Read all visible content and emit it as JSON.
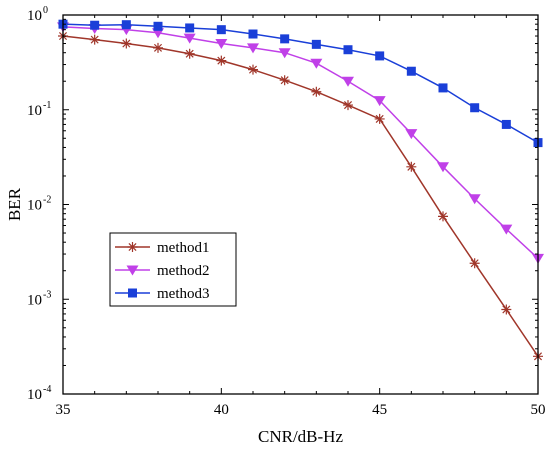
{
  "chart_data": {
    "type": "line",
    "xlabel": "CNR/dB-Hz",
    "ylabel": "BER",
    "xlim": [
      35,
      50
    ],
    "ylim": [
      0.0001,
      1
    ],
    "yscale": "log",
    "grid": false,
    "legend_position": "middle-left",
    "x_ticks": [
      {
        "value": 35,
        "label": "35"
      },
      {
        "value": 40,
        "label": "40"
      },
      {
        "value": 45,
        "label": "45"
      },
      {
        "value": 50,
        "label": "50"
      }
    ],
    "y_ticks": [
      {
        "value": 1,
        "base": "10",
        "exp": "0"
      },
      {
        "value": 0.1,
        "base": "10",
        "exp": "-1"
      },
      {
        "value": 0.01,
        "base": "10",
        "exp": "-2"
      },
      {
        "value": 0.001,
        "base": "10",
        "exp": "-3"
      },
      {
        "value": 0.0001,
        "base": "10",
        "exp": "-4"
      }
    ],
    "x": [
      35,
      36,
      37,
      38,
      39,
      40,
      41,
      42,
      43,
      44,
      45,
      46,
      47,
      48,
      49,
      50
    ],
    "series": [
      {
        "name": "method1",
        "color": "#a0362a",
        "marker": "asterisk",
        "values": [
          0.6,
          0.55,
          0.5,
          0.45,
          0.39,
          0.33,
          0.265,
          0.205,
          0.155,
          0.112,
          0.08,
          0.025,
          0.0075,
          0.0024,
          0.00078,
          0.00025
        ]
      },
      {
        "name": "method2",
        "color": "#c040e8",
        "marker": "triangle-down",
        "values": [
          0.75,
          0.72,
          0.7,
          0.65,
          0.57,
          0.5,
          0.45,
          0.4,
          0.31,
          0.2,
          0.125,
          0.056,
          0.025,
          0.0115,
          0.0055,
          0.0027
        ]
      },
      {
        "name": "method3",
        "color": "#1a3fd8",
        "marker": "square",
        "values": [
          0.8,
          0.78,
          0.79,
          0.76,
          0.73,
          0.7,
          0.63,
          0.56,
          0.49,
          0.43,
          0.37,
          0.255,
          0.17,
          0.105,
          0.07,
          0.045
        ]
      }
    ]
  }
}
